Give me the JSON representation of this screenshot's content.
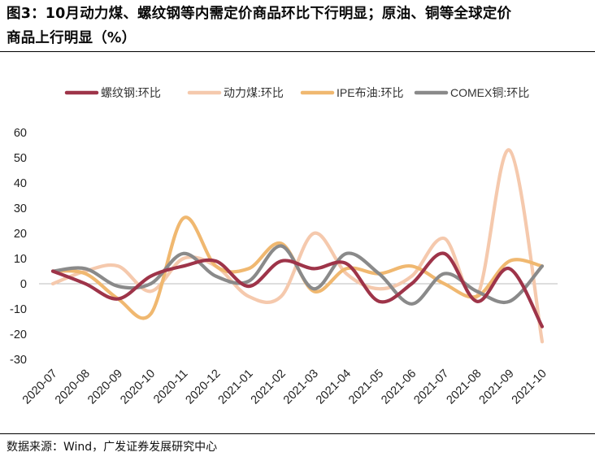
{
  "title_line1": "图3：10月动力煤、螺纹钢等内需定价商品环比下行明显；原油、铜等全球定价",
  "title_line2": "商品上行明显（%）",
  "source": "数据来源：Wind，广发证券发展研究中心",
  "chart_data": {
    "type": "line",
    "title": "",
    "xlabel": "",
    "ylabel": "",
    "ylim": [
      -30,
      60
    ],
    "yticks": [
      60,
      50,
      40,
      30,
      20,
      10,
      0,
      -10,
      -20,
      -30
    ],
    "grid": false,
    "legend_position": "top",
    "categories": [
      "2020-07",
      "2020-08",
      "2020-09",
      "2020-10",
      "2020-11",
      "2020-12",
      "2021-01",
      "2021-02",
      "2021-03",
      "2021-04",
      "2021-05",
      "2021-06",
      "2021-07",
      "2021-08",
      "2021-09",
      "2021-10"
    ],
    "series": [
      {
        "name": "螺纹钢:环比",
        "color": "#9e3449",
        "values": [
          5,
          0,
          -6,
          3,
          7,
          9,
          -1,
          9,
          6,
          8,
          -7,
          0,
          12,
          -7,
          6,
          -17
        ]
      },
      {
        "name": "动力煤:环比",
        "color": "#f5c9ad",
        "values": [
          0,
          5,
          7,
          -3,
          10,
          7,
          -5,
          -5,
          20,
          4,
          -2,
          3,
          18,
          -5,
          53,
          -23
        ]
      },
      {
        "name": "IPE布油:环比",
        "color": "#f0b870",
        "values": [
          5,
          4,
          -6,
          -12,
          26,
          7,
          6,
          16,
          -3,
          6,
          4,
          7,
          0,
          -5,
          9,
          7
        ]
      },
      {
        "name": "COMEX铜:环比",
        "color": "#8a8a8a",
        "values": [
          5,
          6,
          -1,
          0,
          12,
          3,
          1,
          15,
          -2,
          12,
          4,
          -8,
          4,
          -3,
          -7,
          7
        ]
      }
    ]
  }
}
